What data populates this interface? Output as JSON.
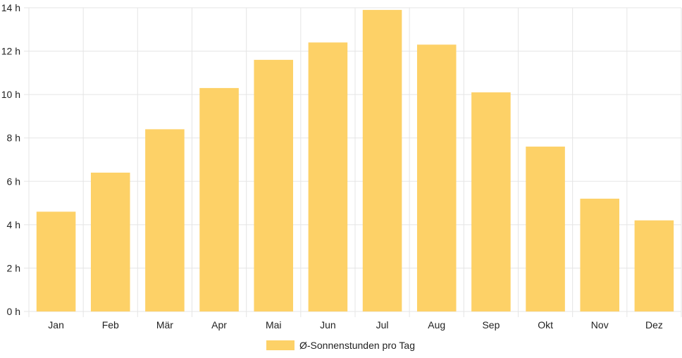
{
  "chart_data": {
    "type": "bar",
    "categories": [
      "Jan",
      "Feb",
      "Mär",
      "Apr",
      "Mai",
      "Jun",
      "Jul",
      "Aug",
      "Sep",
      "Okt",
      "Nov",
      "Dez"
    ],
    "series": [
      {
        "name": "Ø-Sonnenstunden pro Tag",
        "values": [
          4.6,
          6.4,
          8.4,
          10.3,
          11.6,
          12.4,
          13.9,
          12.3,
          10.1,
          7.6,
          5.2,
          4.2
        ]
      }
    ],
    "ylim": [
      0,
      14
    ],
    "yticks": [
      "0 h",
      "2 h",
      "4 h",
      "6 h",
      "8 h",
      "10 h",
      "12 h",
      "14 h"
    ],
    "grid": true,
    "legend": "bottom",
    "colors": {
      "bar": "#fdd167",
      "grid": "#e5e5e5",
      "text": "#222222"
    }
  }
}
